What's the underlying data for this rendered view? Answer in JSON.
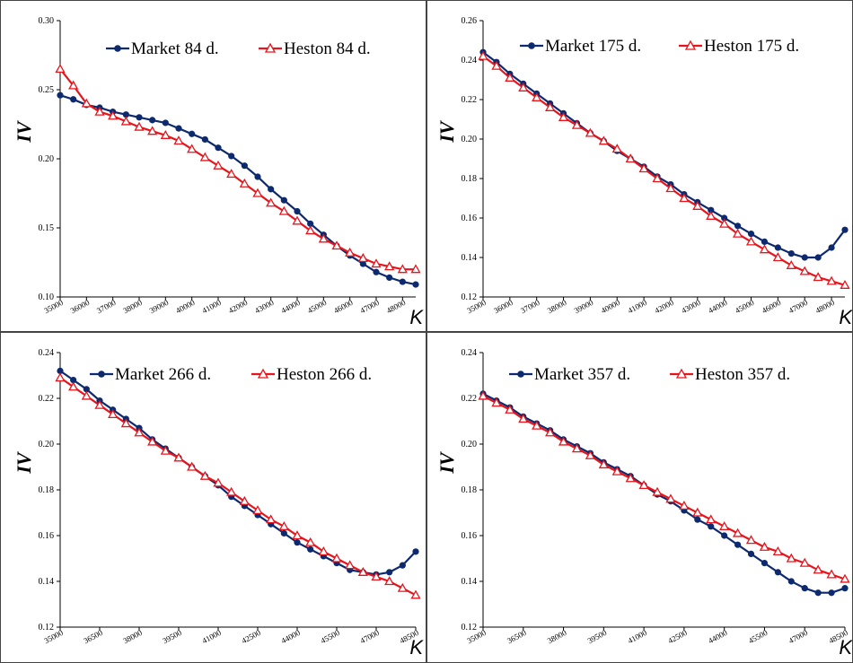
{
  "chart_data": [
    {
      "type": "line",
      "xlabel": "K",
      "ylabel": "IV",
      "ylim": [
        0.1,
        0.3
      ],
      "yticks": [
        "0.10",
        "0.15",
        "0.20",
        "0.25",
        "0.30"
      ],
      "xticks": [
        "35000",
        "36000",
        "37000",
        "38000",
        "39000",
        "40000",
        "41000",
        "42000",
        "43000",
        "44000",
        "45000",
        "46000",
        "47000",
        "48000"
      ],
      "legend_position": "top-right",
      "x": [
        35000,
        35500,
        36000,
        36500,
        37000,
        37500,
        38000,
        38500,
        39000,
        39500,
        40000,
        40500,
        41000,
        41500,
        42000,
        42500,
        43000,
        43500,
        44000,
        44500,
        45000,
        45500,
        46000,
        46500,
        47000,
        47500,
        48000,
        48500
      ],
      "series": [
        {
          "name": "Market 84 d.",
          "color": "#0d2a6e",
          "marker": "circle",
          "values": [
            0.246,
            0.243,
            0.239,
            0.237,
            0.234,
            0.232,
            0.23,
            0.228,
            0.226,
            0.222,
            0.218,
            0.214,
            0.208,
            0.202,
            0.195,
            0.187,
            0.178,
            0.17,
            0.162,
            0.153,
            0.145,
            0.137,
            0.13,
            0.124,
            0.118,
            0.114,
            0.111,
            0.109
          ]
        },
        {
          "name": "Heston 84 d.",
          "color": "#e8141b",
          "marker": "triangle",
          "values": [
            0.265,
            0.253,
            0.24,
            0.234,
            0.231,
            0.227,
            0.223,
            0.22,
            0.217,
            0.213,
            0.207,
            0.201,
            0.195,
            0.189,
            0.182,
            0.175,
            0.168,
            0.162,
            0.155,
            0.148,
            0.142,
            0.137,
            0.132,
            0.128,
            0.124,
            0.122,
            0.12,
            0.12
          ]
        }
      ]
    },
    {
      "type": "line",
      "xlabel": "K",
      "ylabel": "IV",
      "ylim": [
        0.12,
        0.26
      ],
      "yticks": [
        "0.12",
        "0.14",
        "0.16",
        "0.18",
        "0.20",
        "0.22",
        "0.24",
        "0.26"
      ],
      "xticks": [
        "35000",
        "36000",
        "37000",
        "38000",
        "39000",
        "40000",
        "41000",
        "42000",
        "43000",
        "44000",
        "45000",
        "46000",
        "47000",
        "48000"
      ],
      "legend_position": "top-right",
      "x": [
        35000,
        35500,
        36000,
        36500,
        37000,
        37500,
        38000,
        38500,
        39000,
        39500,
        40000,
        40500,
        41000,
        41500,
        42000,
        42500,
        43000,
        43500,
        44000,
        44500,
        45000,
        45500,
        46000,
        46500,
        47000,
        47500,
        48000,
        48500
      ],
      "series": [
        {
          "name": "Market 175 d.",
          "color": "#0d2a6e",
          "marker": "circle",
          "values": [
            0.244,
            0.239,
            0.233,
            0.228,
            0.223,
            0.218,
            0.213,
            0.208,
            0.203,
            0.199,
            0.194,
            0.19,
            0.186,
            0.181,
            0.177,
            0.172,
            0.168,
            0.164,
            0.16,
            0.156,
            0.152,
            0.148,
            0.145,
            0.142,
            0.14,
            0.14,
            0.145,
            0.154
          ]
        },
        {
          "name": "Heston 175 d.",
          "color": "#e8141b",
          "marker": "triangle",
          "values": [
            0.242,
            0.237,
            0.231,
            0.226,
            0.221,
            0.216,
            0.211,
            0.207,
            0.203,
            0.199,
            0.195,
            0.19,
            0.185,
            0.18,
            0.175,
            0.17,
            0.166,
            0.161,
            0.157,
            0.152,
            0.148,
            0.144,
            0.14,
            0.136,
            0.133,
            0.13,
            0.128,
            0.126
          ]
        }
      ]
    },
    {
      "type": "line",
      "xlabel": "K",
      "ylabel": "IV",
      "ylim": [
        0.12,
        0.24
      ],
      "yticks": [
        "0.12",
        "0.14",
        "0.16",
        "0.18",
        "0.20",
        "0.22",
        "0.24"
      ],
      "xticks": [
        "35000",
        "36500",
        "38000",
        "39500",
        "41000",
        "42500",
        "44000",
        "45500",
        "47000",
        "48500"
      ],
      "legend_position": "top-right",
      "x": [
        35000,
        35500,
        36000,
        36500,
        37000,
        37500,
        38000,
        38500,
        39000,
        39500,
        40000,
        40500,
        41000,
        41500,
        42000,
        42500,
        43000,
        43500,
        44000,
        44500,
        45000,
        45500,
        46000,
        46500,
        47000,
        47500,
        48000,
        48500
      ],
      "series": [
        {
          "name": "Market 266 d.",
          "color": "#0d2a6e",
          "marker": "circle",
          "values": [
            0.232,
            0.228,
            0.224,
            0.219,
            0.215,
            0.211,
            0.207,
            0.202,
            0.198,
            0.194,
            0.19,
            0.186,
            0.182,
            0.177,
            0.173,
            0.169,
            0.165,
            0.161,
            0.157,
            0.154,
            0.151,
            0.148,
            0.145,
            0.144,
            0.143,
            0.144,
            0.147,
            0.153
          ]
        },
        {
          "name": "Heston 266 d.",
          "color": "#e8141b",
          "marker": "triangle",
          "values": [
            0.229,
            0.225,
            0.221,
            0.217,
            0.213,
            0.209,
            0.205,
            0.201,
            0.197,
            0.194,
            0.19,
            0.186,
            0.183,
            0.179,
            0.175,
            0.171,
            0.167,
            0.164,
            0.16,
            0.157,
            0.153,
            0.15,
            0.147,
            0.144,
            0.142,
            0.14,
            0.137,
            0.134
          ]
        }
      ]
    },
    {
      "type": "line",
      "xlabel": "K",
      "ylabel": "IV",
      "ylim": [
        0.12,
        0.24
      ],
      "yticks": [
        "0.12",
        "0.14",
        "0.16",
        "0.18",
        "0.20",
        "0.22",
        "0.24"
      ],
      "xticks": [
        "35000",
        "36500",
        "38000",
        "39500",
        "41000",
        "42500",
        "44000",
        "45500",
        "47000",
        "48500"
      ],
      "legend_position": "top-right",
      "x": [
        35000,
        35500,
        36000,
        36500,
        37000,
        37500,
        38000,
        38500,
        39000,
        39500,
        40000,
        40500,
        41000,
        41500,
        42000,
        42500,
        43000,
        43500,
        44000,
        44500,
        45000,
        45500,
        46000,
        46500,
        47000,
        47500,
        48000,
        48500
      ],
      "series": [
        {
          "name": "Market 357 d.",
          "color": "#0d2a6e",
          "marker": "circle",
          "values": [
            0.222,
            0.219,
            0.216,
            0.212,
            0.209,
            0.206,
            0.202,
            0.199,
            0.196,
            0.192,
            0.189,
            0.186,
            0.182,
            0.178,
            0.175,
            0.171,
            0.167,
            0.164,
            0.16,
            0.156,
            0.152,
            0.148,
            0.144,
            0.14,
            0.137,
            0.135,
            0.135,
            0.137
          ]
        },
        {
          "name": "Heston 357 d.",
          "color": "#e8141b",
          "marker": "triangle",
          "values": [
            0.221,
            0.218,
            0.215,
            0.211,
            0.208,
            0.205,
            0.201,
            0.198,
            0.195,
            0.191,
            0.188,
            0.185,
            0.182,
            0.179,
            0.176,
            0.173,
            0.17,
            0.167,
            0.164,
            0.161,
            0.158,
            0.155,
            0.153,
            0.15,
            0.148,
            0.145,
            0.143,
            0.141
          ]
        }
      ]
    }
  ]
}
